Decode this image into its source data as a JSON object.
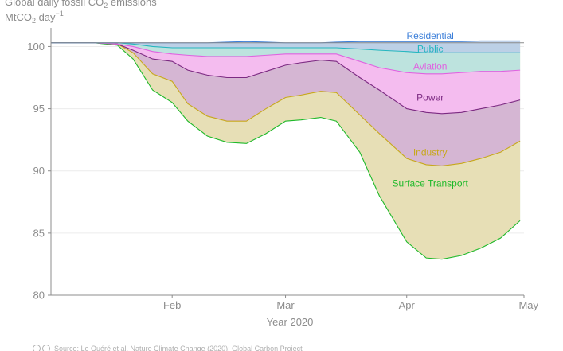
{
  "chart_data": {
    "type": "area",
    "title": "Global daily fossil CO",
    "title_sub": "2",
    "title_suffix": " emissions",
    "ylabel": "MtCO",
    "ylabel_sub": "2",
    "ylabel_suffix": " day",
    "ylabel_sup": "−1",
    "xlabel": "Year 2020",
    "source": "Source: Le Quéré et al. Nature Climate Change (2020); Global Carbon Project",
    "ylim": [
      80,
      101.5
    ],
    "yticks": [
      80,
      85,
      90,
      95,
      100
    ],
    "xlim": [
      "2020-01-01",
      "2020-05-01"
    ],
    "xticks": [
      {
        "date": "2020-02-01",
        "label": "Feb"
      },
      {
        "date": "2020-03-01",
        "label": "Mar"
      },
      {
        "date": "2020-04-01",
        "label": "Apr"
      },
      {
        "date": "2020-05-01",
        "label": "May"
      }
    ],
    "grid": "horizontal",
    "baseline": 100.3,
    "x": [
      "2020-01-01",
      "2020-01-12",
      "2020-01-18",
      "2020-01-22",
      "2020-01-27",
      "2020-02-01",
      "2020-02-05",
      "2020-02-10",
      "2020-02-15",
      "2020-02-20",
      "2020-02-25",
      "2020-03-01",
      "2020-03-05",
      "2020-03-10",
      "2020-03-14",
      "2020-03-20",
      "2020-03-25",
      "2020-04-01",
      "2020-04-06",
      "2020-04-10",
      "2020-04-15",
      "2020-04-20",
      "2020-04-25",
      "2020-04-30"
    ],
    "series": [
      {
        "name": "Surface Transport",
        "color": "#1fb92a",
        "fill": "#b7e5b4",
        "label_pos": {
          "date": "2020-04-07",
          "value": 89.0
        },
        "values": [
          100.3,
          100.3,
          100.1,
          99.0,
          96.5,
          95.5,
          94.0,
          92.8,
          92.3,
          92.2,
          93.0,
          94.0,
          94.1,
          94.3,
          94.0,
          91.5,
          88.0,
          84.3,
          83.0,
          82.9,
          83.2,
          83.8,
          84.6,
          86.0
        ]
      },
      {
        "name": "Industry",
        "color": "#c7a81c",
        "fill": "#e9deb5",
        "label_pos": {
          "date": "2020-04-07",
          "value": 91.5
        },
        "values": [
          100.3,
          100.3,
          100.2,
          99.5,
          97.8,
          97.2,
          95.4,
          94.4,
          94.0,
          94.0,
          95.0,
          95.9,
          96.1,
          96.4,
          96.3,
          94.5,
          93.0,
          91.0,
          90.5,
          90.4,
          90.6,
          91.0,
          91.5,
          92.4
        ]
      },
      {
        "name": "Power",
        "color": "#7c2a82",
        "fill": "#d6b3d4",
        "label_pos": {
          "date": "2020-04-07",
          "value": 95.9
        },
        "values": [
          100.3,
          100.3,
          100.2,
          99.7,
          99.0,
          98.8,
          98.1,
          97.7,
          97.5,
          97.5,
          98.0,
          98.5,
          98.7,
          98.9,
          98.8,
          97.5,
          96.5,
          95.0,
          94.7,
          94.6,
          94.7,
          95.0,
          95.3,
          95.7
        ]
      },
      {
        "name": "Aviation",
        "color": "#e063e0",
        "fill": "#f7b9f1",
        "label_pos": {
          "date": "2020-04-07",
          "value": 98.4
        },
        "values": [
          100.3,
          100.3,
          100.2,
          100.0,
          99.6,
          99.4,
          99.3,
          99.2,
          99.2,
          99.2,
          99.3,
          99.4,
          99.4,
          99.4,
          99.4,
          98.8,
          98.3,
          97.9,
          97.8,
          97.8,
          97.9,
          98.0,
          98.0,
          98.1
        ]
      },
      {
        "name": "Public",
        "color": "#25b6bf",
        "fill": "#bde3df",
        "label_pos": {
          "date": "2020-04-07",
          "value": 99.8
        },
        "values": [
          100.3,
          100.3,
          100.3,
          100.2,
          100.0,
          99.9,
          99.9,
          99.9,
          99.9,
          99.9,
          99.9,
          99.9,
          99.9,
          99.9,
          99.9,
          99.8,
          99.7,
          99.6,
          99.5,
          99.5,
          99.5,
          99.5,
          99.5,
          99.5
        ]
      },
      {
        "name": "Residential",
        "color": "#3c7fd9",
        "fill": "#bccfe8",
        "label_pos": {
          "date": "2020-04-07",
          "value": 100.85
        },
        "values": [
          100.3,
          100.3,
          100.3,
          100.3,
          100.3,
          100.3,
          100.3,
          100.3,
          100.35,
          100.4,
          100.35,
          100.3,
          100.3,
          100.3,
          100.35,
          100.4,
          100.4,
          100.4,
          100.4,
          100.4,
          100.4,
          100.45,
          100.45,
          100.45
        ]
      }
    ]
  }
}
